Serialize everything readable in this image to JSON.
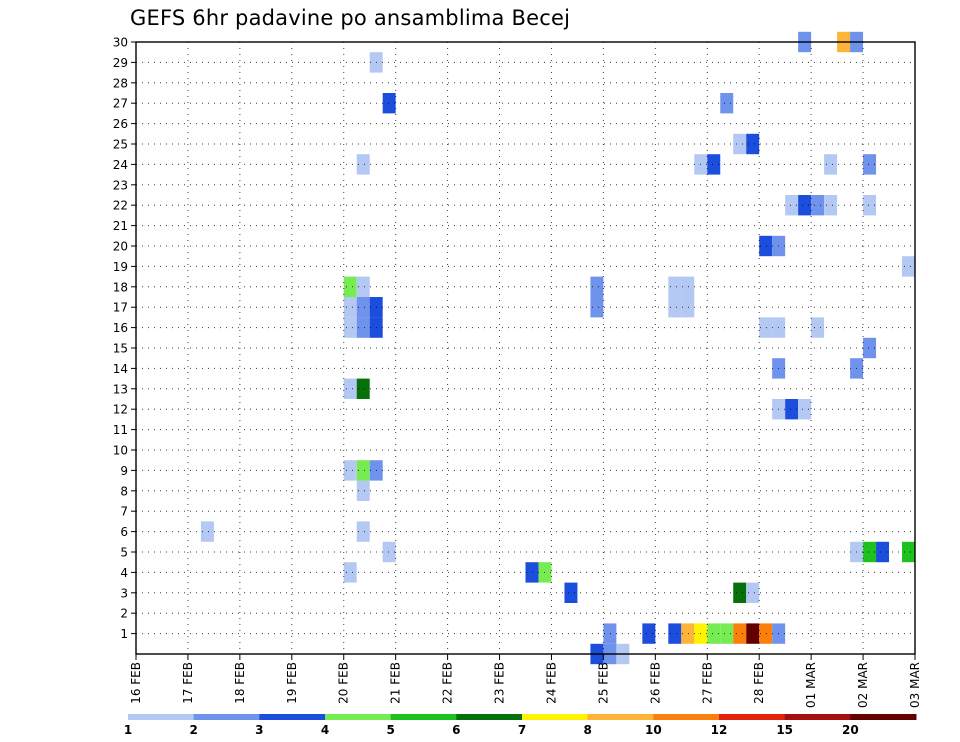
{
  "chart_data": {
    "type": "heatmap",
    "title": "GEFS 6hr padavine po ansamblima Becej",
    "xlabel": "",
    "ylabel": "",
    "x_tick_labels": [
      "16 FEB",
      "17 FEB",
      "18 FEB",
      "19 FEB",
      "20 FEB",
      "21 FEB",
      "22 FEB",
      "23 FEB",
      "24 FEB",
      "25 FEB",
      "26 FEB",
      "27 FEB",
      "28 FEB",
      "01 MAR",
      "02 MAR",
      "03 MAR"
    ],
    "y_tick_labels": [
      "1",
      "2",
      "3",
      "4",
      "5",
      "6",
      "7",
      "8",
      "9",
      "10",
      "11",
      "12",
      "13",
      "14",
      "15",
      "16",
      "17",
      "18",
      "19",
      "20",
      "21",
      "22",
      "23",
      "24",
      "25",
      "26",
      "27",
      "28",
      "29",
      "30"
    ],
    "x_range_days": [
      0,
      15
    ],
    "y_range": [
      0,
      30
    ],
    "time_step_hours": 6,
    "grid": true,
    "legend": {
      "placement": "bottom",
      "thresholds": [
        "1",
        "2",
        "3",
        "4",
        "5",
        "6",
        "7",
        "8",
        "10",
        "12",
        "15",
        "20"
      ],
      "colors": [
        "#b4c8f4",
        "#6f93ec",
        "#1c4ede",
        "#77ec52",
        "#1ec11e",
        "#06700a",
        "#fff202",
        "#fdb437",
        "#fa7f0c",
        "#e3230d",
        "#a60f10",
        "#640000"
      ]
    },
    "cells": [
      {
        "member": 30,
        "day": 12.75,
        "cat": 2
      },
      {
        "member": 30,
        "day": 13.5,
        "cat": 8
      },
      {
        "member": 30,
        "day": 13.75,
        "cat": 2
      },
      {
        "member": 29,
        "day": 4.5,
        "cat": 1
      },
      {
        "member": 27,
        "day": 4.75,
        "cat": 3
      },
      {
        "member": 27,
        "day": 11.25,
        "cat": 2
      },
      {
        "member": 25,
        "day": 11.5,
        "cat": 1
      },
      {
        "member": 25,
        "day": 11.75,
        "cat": 3
      },
      {
        "member": 24,
        "day": 4.25,
        "cat": 1
      },
      {
        "member": 24,
        "day": 10.75,
        "cat": 1
      },
      {
        "member": 24,
        "day": 11.0,
        "cat": 3
      },
      {
        "member": 24,
        "day": 13.25,
        "cat": 1
      },
      {
        "member": 24,
        "day": 14.0,
        "cat": 2
      },
      {
        "member": 22,
        "day": 12.5,
        "cat": 1
      },
      {
        "member": 22,
        "day": 12.75,
        "cat": 3
      },
      {
        "member": 22,
        "day": 13.0,
        "cat": 2
      },
      {
        "member": 22,
        "day": 13.25,
        "cat": 1
      },
      {
        "member": 22,
        "day": 14.0,
        "cat": 1
      },
      {
        "member": 20,
        "day": 12.0,
        "cat": 3
      },
      {
        "member": 20,
        "day": 12.25,
        "cat": 2
      },
      {
        "member": 19,
        "day": 14.75,
        "cat": 1
      },
      {
        "member": 18,
        "day": 4.0,
        "cat": 4
      },
      {
        "member": 18,
        "day": 4.25,
        "cat": 1
      },
      {
        "member": 18,
        "day": 8.75,
        "cat": 2
      },
      {
        "member": 18,
        "day": 10.25,
        "cat": 1
      },
      {
        "member": 18,
        "day": 10.5,
        "cat": 1
      },
      {
        "member": 17,
        "day": 4.0,
        "cat": 1
      },
      {
        "member": 17,
        "day": 4.25,
        "cat": 2
      },
      {
        "member": 17,
        "day": 4.5,
        "cat": 3
      },
      {
        "member": 17,
        "day": 8.75,
        "cat": 2
      },
      {
        "member": 17,
        "day": 10.25,
        "cat": 1
      },
      {
        "member": 17,
        "day": 10.5,
        "cat": 1
      },
      {
        "member": 16,
        "day": 4.0,
        "cat": 1
      },
      {
        "member": 16,
        "day": 4.25,
        "cat": 2
      },
      {
        "member": 16,
        "day": 4.5,
        "cat": 3
      },
      {
        "member": 16,
        "day": 12.0,
        "cat": 1
      },
      {
        "member": 16,
        "day": 12.25,
        "cat": 1
      },
      {
        "member": 16,
        "day": 13.0,
        "cat": 1
      },
      {
        "member": 15,
        "day": 14.0,
        "cat": 2
      },
      {
        "member": 14,
        "day": 12.25,
        "cat": 2
      },
      {
        "member": 14,
        "day": 13.75,
        "cat": 2
      },
      {
        "member": 13,
        "day": 4.0,
        "cat": 1
      },
      {
        "member": 13,
        "day": 4.25,
        "cat": 6
      },
      {
        "member": 12,
        "day": 12.25,
        "cat": 1
      },
      {
        "member": 12,
        "day": 12.5,
        "cat": 3
      },
      {
        "member": 12,
        "day": 12.75,
        "cat": 1
      },
      {
        "member": 9,
        "day": 4.0,
        "cat": 1
      },
      {
        "member": 9,
        "day": 4.25,
        "cat": 4
      },
      {
        "member": 9,
        "day": 4.5,
        "cat": 2
      },
      {
        "member": 8,
        "day": 4.25,
        "cat": 1
      },
      {
        "member": 6,
        "day": 1.25,
        "cat": 1
      },
      {
        "member": 6,
        "day": 4.25,
        "cat": 1
      },
      {
        "member": 5,
        "day": 4.75,
        "cat": 1
      },
      {
        "member": 5,
        "day": 13.75,
        "cat": 1
      },
      {
        "member": 5,
        "day": 14.0,
        "cat": 5
      },
      {
        "member": 5,
        "day": 14.25,
        "cat": 3
      },
      {
        "member": 5,
        "day": 14.75,
        "cat": 5
      },
      {
        "member": 4,
        "day": 4.0,
        "cat": 1
      },
      {
        "member": 4,
        "day": 7.5,
        "cat": 3
      },
      {
        "member": 4,
        "day": 7.75,
        "cat": 4
      },
      {
        "member": 3,
        "day": 8.25,
        "cat": 3
      },
      {
        "member": 3,
        "day": 11.5,
        "cat": 6
      },
      {
        "member": 3,
        "day": 11.75,
        "cat": 1
      },
      {
        "member": 1,
        "day": 9.0,
        "cat": 2
      },
      {
        "member": 1,
        "day": 9.75,
        "cat": 3
      },
      {
        "member": 1,
        "day": 10.25,
        "cat": 3
      },
      {
        "member": 1,
        "day": 10.5,
        "cat": 8
      },
      {
        "member": 1,
        "day": 10.75,
        "cat": 7
      },
      {
        "member": 1,
        "day": 11.0,
        "cat": 4
      },
      {
        "member": 1,
        "day": 11.25,
        "cat": 4
      },
      {
        "member": 1,
        "day": 11.5,
        "cat": 9
      },
      {
        "member": 1,
        "day": 11.75,
        "cat": 12
      },
      {
        "member": 1,
        "day": 12.0,
        "cat": 9
      },
      {
        "member": 1,
        "day": 12.25,
        "cat": 2
      },
      {
        "member": 0,
        "day": 8.75,
        "cat": 3
      },
      {
        "member": 0,
        "day": 9.0,
        "cat": 2
      },
      {
        "member": 0,
        "day": 9.25,
        "cat": 1
      }
    ]
  }
}
